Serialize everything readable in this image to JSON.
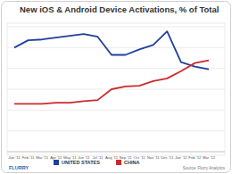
{
  "chart_data": {
    "type": "line",
    "title": "New iOS & Android Device Activations, % of Total",
    "categories": [
      "Jan '11",
      "Feb '11",
      "Mar '11",
      "Apr '11",
      "May '11",
      "Jun '11",
      "Jul '11",
      "Aug '11",
      "Sep '11",
      "Oct '11",
      "Nov '11",
      "Dec '11",
      "Jan '12",
      "Feb '12",
      "Mar '12"
    ],
    "series": [
      {
        "name": "UNITED STATES",
        "color": "#1f3f9c",
        "values": [
          50,
          53.5,
          53.9,
          54.8,
          55.7,
          56.5,
          55.2,
          46.5,
          46.5,
          49.1,
          51.3,
          57.8,
          43,
          40.9,
          39.6
        ]
      },
      {
        "name": "CHINA",
        "color": "#cc2a2a",
        "values": [
          23,
          23,
          23,
          23.5,
          23.5,
          24.3,
          24.8,
          30,
          31.3,
          31.7,
          33.9,
          35.2,
          38.7,
          42.6,
          43.9
        ]
      }
    ],
    "ylim": [
      0,
      60
    ],
    "yticks": [
      0,
      10,
      20,
      30,
      40,
      50,
      60
    ],
    "grid": true,
    "legend": "bottom",
    "tick_labels": "x",
    "annotations": [
      "FLURRY",
      "Source: Flurry Analytics"
    ]
  }
}
